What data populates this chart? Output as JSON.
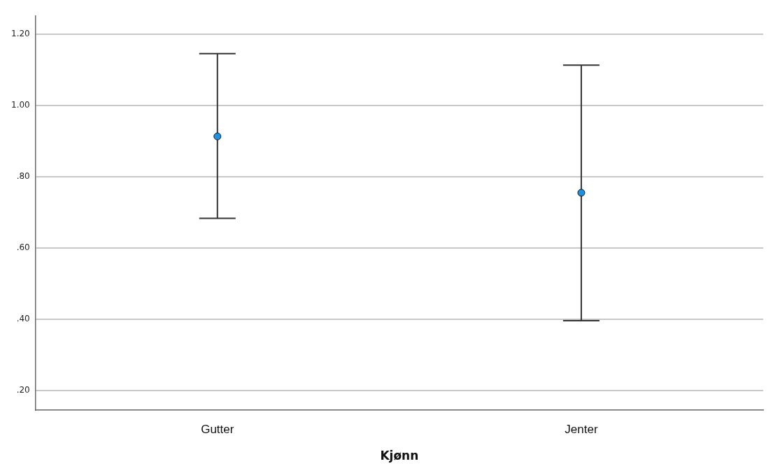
{
  "chart_data": {
    "type": "scatter",
    "xlabel": "Kjønn",
    "categories": [
      "Gutter",
      "Jenter"
    ],
    "values": [
      0.913,
      0.755
    ],
    "errors": [
      [
        0.683,
        1.145
      ],
      [
        0.396,
        1.113
      ]
    ],
    "color": "#1f8fe0",
    "marker": "circle",
    "grid": "y",
    "ylim": [
      0.145,
      1.25
    ],
    "yticks": [
      {
        "value": 0.2,
        "label": ".20"
      },
      {
        "value": 0.4,
        "label": ".40"
      },
      {
        "value": 0.6,
        "label": ".60"
      },
      {
        "value": 0.8,
        "label": ".80"
      },
      {
        "value": 1.0,
        "label": "1.00"
      },
      {
        "value": 1.2,
        "label": "1.20"
      }
    ]
  }
}
